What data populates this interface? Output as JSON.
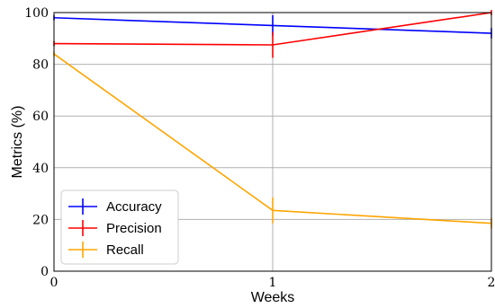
{
  "chart_data": {
    "type": "line",
    "title": "",
    "xlabel": "Weeks",
    "ylabel": "Metrics (%)",
    "x": [
      0,
      1,
      2
    ],
    "xlim": [
      0,
      2
    ],
    "ylim": [
      0,
      100
    ],
    "xticks": [
      "0",
      "1",
      "2"
    ],
    "yticks": [
      "0",
      "20",
      "40",
      "60",
      "80",
      "100"
    ],
    "grid": true,
    "legend_position": "lower-left",
    "series": [
      {
        "name": "Accuracy",
        "color": "#0000ff",
        "values": [
          98,
          95,
          92
        ],
        "errors": [
          1,
          4,
          2
        ]
      },
      {
        "name": "Precision",
        "color": "#ff0000",
        "values": [
          88,
          87.5,
          100
        ],
        "errors": [
          1,
          5,
          1
        ]
      },
      {
        "name": "Recall",
        "color": "#ffa500",
        "values": [
          84,
          23.5,
          18.5
        ],
        "errors": [
          1,
          5,
          2
        ]
      }
    ]
  }
}
